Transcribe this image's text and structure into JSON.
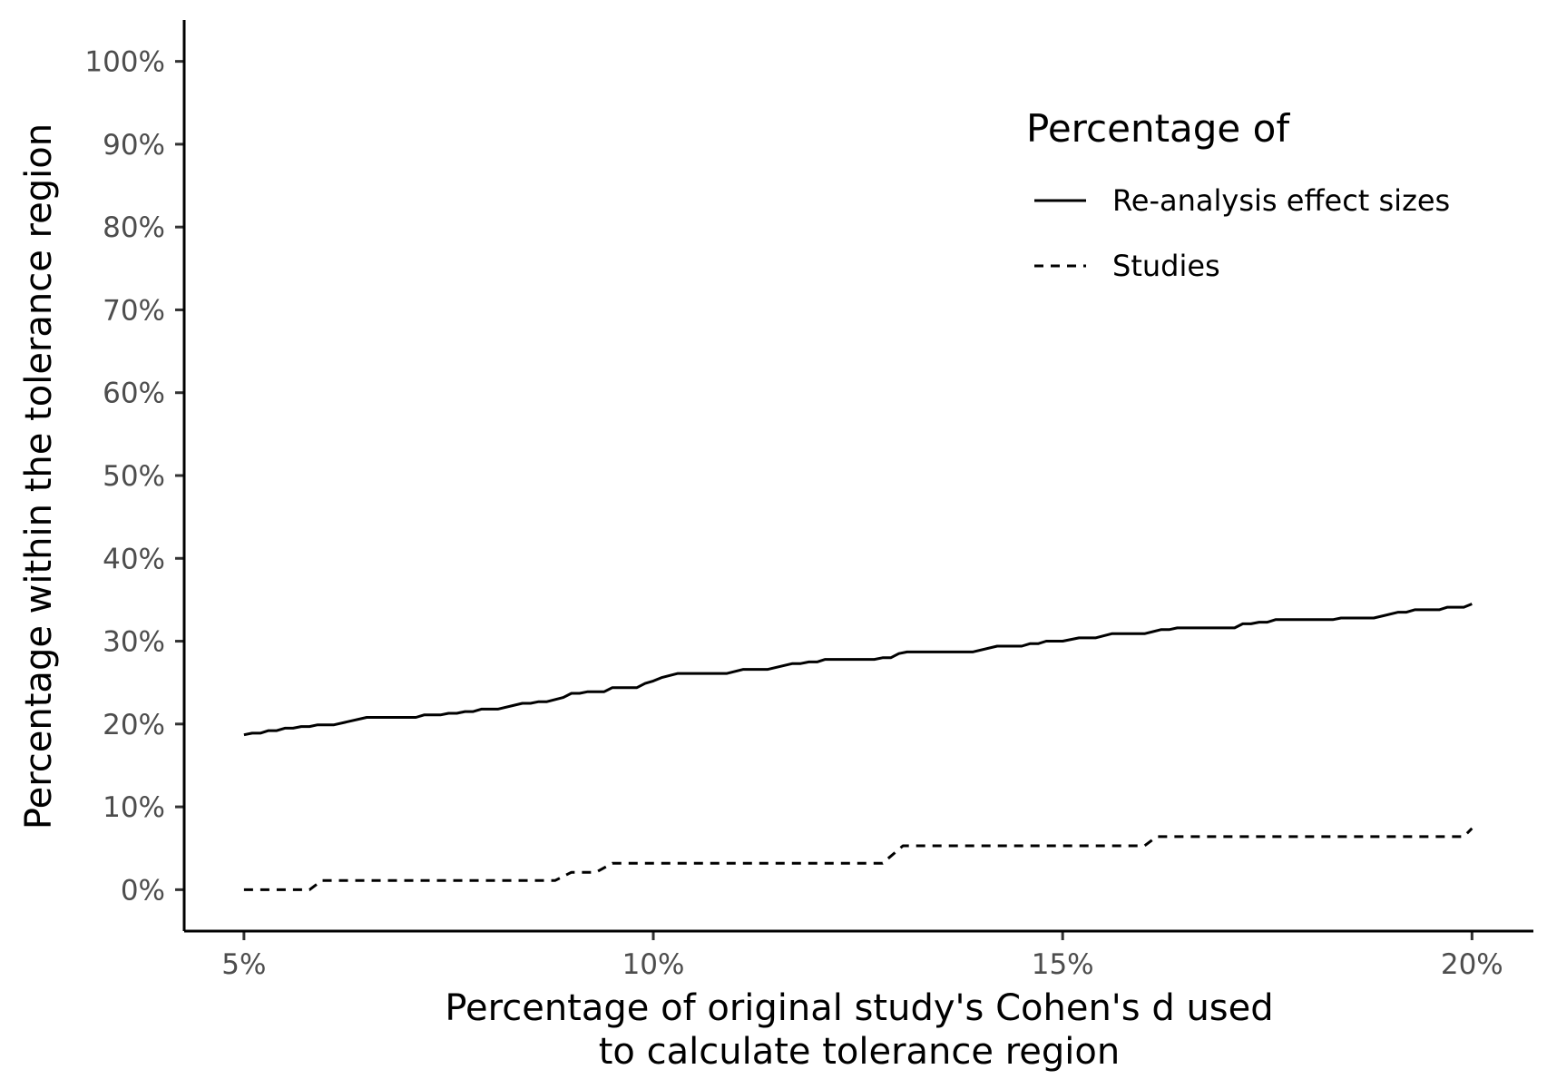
{
  "chart_data": {
    "type": "line",
    "xlabel_lines": [
      "Percentage of original study's Cohen's d used",
      "to calculate tolerance region"
    ],
    "ylabel": "Percentage within the tolerance region",
    "xlim": [
      4.27,
      20.75
    ],
    "ylim": [
      -5,
      105
    ],
    "x_ticks": [
      5,
      10,
      15,
      20
    ],
    "x_tick_labels": [
      "5%",
      "10%",
      "15%",
      "20%"
    ],
    "y_ticks": [
      0,
      10,
      20,
      30,
      40,
      50,
      60,
      70,
      80,
      90,
      100
    ],
    "y_tick_labels": [
      "0%",
      "10%",
      "20%",
      "30%",
      "40%",
      "50%",
      "60%",
      "70%",
      "80%",
      "90%",
      "100%"
    ],
    "grid": false,
    "legend": {
      "title": "Percentage of",
      "position": "top-right"
    },
    "series": [
      {
        "name": "Re-analysis effect sizes",
        "line_style": "solid",
        "color": "#000000",
        "points": [
          [
            5.0,
            18.7
          ],
          [
            5.1,
            18.9
          ],
          [
            5.2,
            18.9
          ],
          [
            5.3,
            19.2
          ],
          [
            5.4,
            19.2
          ],
          [
            5.5,
            19.5
          ],
          [
            5.6,
            19.5
          ],
          [
            5.7,
            19.7
          ],
          [
            5.8,
            19.7
          ],
          [
            5.9,
            19.9
          ],
          [
            6.0,
            19.9
          ],
          [
            6.1,
            19.9
          ],
          [
            6.5,
            20.8
          ],
          [
            7.1,
            20.8
          ],
          [
            7.2,
            21.1
          ],
          [
            7.4,
            21.1
          ],
          [
            7.5,
            21.3
          ],
          [
            7.6,
            21.3
          ],
          [
            7.7,
            21.5
          ],
          [
            7.8,
            21.5
          ],
          [
            7.9,
            21.8
          ],
          [
            8.1,
            21.8
          ],
          [
            8.4,
            22.5
          ],
          [
            8.5,
            22.5
          ],
          [
            8.6,
            22.7
          ],
          [
            8.7,
            22.7
          ],
          [
            8.9,
            23.2
          ],
          [
            9.0,
            23.7
          ],
          [
            9.1,
            23.7
          ],
          [
            9.2,
            23.9
          ],
          [
            9.4,
            23.9
          ],
          [
            9.5,
            24.4
          ],
          [
            9.8,
            24.4
          ],
          [
            9.9,
            24.9
          ],
          [
            10.0,
            25.2
          ],
          [
            10.1,
            25.6
          ],
          [
            10.3,
            26.1
          ],
          [
            10.4,
            26.1
          ],
          [
            10.9,
            26.1
          ],
          [
            11.1,
            26.6
          ],
          [
            11.4,
            26.6
          ],
          [
            11.7,
            27.3
          ],
          [
            11.8,
            27.3
          ],
          [
            11.9,
            27.5
          ],
          [
            12.0,
            27.5
          ],
          [
            12.1,
            27.8
          ],
          [
            12.7,
            27.8
          ],
          [
            12.8,
            28.0
          ],
          [
            12.9,
            28.0
          ],
          [
            13.0,
            28.5
          ],
          [
            13.1,
            28.7
          ],
          [
            13.9,
            28.7
          ],
          [
            14.2,
            29.4
          ],
          [
            14.5,
            29.4
          ],
          [
            14.6,
            29.7
          ],
          [
            14.7,
            29.7
          ],
          [
            14.8,
            30.0
          ],
          [
            15.0,
            30.0
          ],
          [
            15.2,
            30.4
          ],
          [
            15.4,
            30.4
          ],
          [
            15.6,
            30.9
          ],
          [
            16.0,
            30.9
          ],
          [
            16.2,
            31.4
          ],
          [
            16.3,
            31.4
          ],
          [
            16.4,
            31.6
          ],
          [
            17.1,
            31.6
          ],
          [
            17.2,
            32.1
          ],
          [
            17.3,
            32.1
          ],
          [
            17.4,
            32.3
          ],
          [
            17.5,
            32.3
          ],
          [
            17.6,
            32.6
          ],
          [
            18.3,
            32.6
          ],
          [
            18.4,
            32.8
          ],
          [
            18.8,
            32.8
          ],
          [
            19.1,
            33.5
          ],
          [
            19.2,
            33.5
          ],
          [
            19.3,
            33.8
          ],
          [
            19.6,
            33.8
          ],
          [
            19.7,
            34.1
          ],
          [
            19.9,
            34.1
          ],
          [
            20.0,
            34.5
          ]
        ]
      },
      {
        "name": "Studies",
        "line_style": "dashed",
        "color": "#000000",
        "points": [
          [
            5.0,
            0.0
          ],
          [
            5.8,
            0.0
          ],
          [
            5.95,
            1.1
          ],
          [
            8.8,
            1.1
          ],
          [
            9.0,
            2.1
          ],
          [
            9.3,
            2.1
          ],
          [
            9.5,
            3.2
          ],
          [
            12.8,
            3.2
          ],
          [
            13.05,
            5.3
          ],
          [
            16.0,
            5.3
          ],
          [
            16.15,
            6.4
          ],
          [
            19.9,
            6.4
          ],
          [
            20.0,
            7.4
          ]
        ]
      }
    ]
  }
}
